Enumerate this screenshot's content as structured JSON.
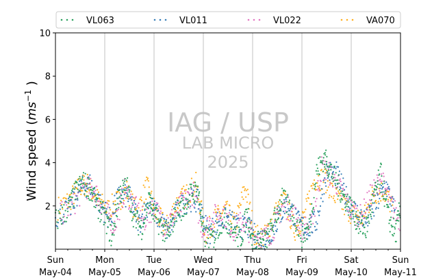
{
  "chart_data": {
    "type": "scatter",
    "title": "",
    "xlabel": "",
    "ylabel": "Wind speed (ms⁻¹)",
    "ylabel_parts": {
      "main": "Wind speed (",
      "unit": "ms",
      "exp": "−1",
      "close": " )"
    },
    "xlim": [
      "2025-05-04T00:00",
      "2025-05-11T00:00"
    ],
    "ylim": [
      0,
      10
    ],
    "yticks": [
      "2",
      "4",
      "6",
      "8",
      "10"
    ],
    "xticks": [
      {
        "day": "Sun",
        "date": "May-04",
        "t": 0
      },
      {
        "day": "Mon",
        "date": "May-05",
        "t": 1
      },
      {
        "day": "Tue",
        "date": "May-06",
        "t": 2
      },
      {
        "day": "Wed",
        "date": "May-07",
        "t": 3
      },
      {
        "day": "Thu",
        "date": "May-08",
        "t": 4
      },
      {
        "day": "Fri",
        "date": "May-09",
        "t": 5
      },
      {
        "day": "Sat",
        "date": "May-10",
        "t": 6
      },
      {
        "day": "Sun",
        "date": "May-11",
        "t": 7
      }
    ],
    "grid": "vertical at day boundaries",
    "legend_position": "top",
    "watermark": [
      "IAG / USP",
      "LAB MICRO",
      "2025"
    ],
    "series": [
      {
        "name": "VL063",
        "color": "#2ca25f",
        "x_days": [
          0,
          0.25,
          0.4,
          0.55,
          0.7,
          0.85,
          1,
          1.15,
          1.3,
          1.45,
          1.6,
          1.75,
          1.9,
          2,
          2.15,
          2.3,
          2.45,
          2.6,
          2.75,
          2.9,
          3,
          3.2,
          3.4,
          3.6,
          3.75,
          3.9,
          4,
          4.15,
          4.3,
          4.45,
          4.6,
          4.8,
          5,
          5.15,
          5.3,
          5.45,
          5.55,
          5.7,
          5.85,
          6,
          6.15,
          6.3,
          6.45,
          6.6,
          6.75,
          6.9,
          7
        ],
        "values": [
          1.3,
          1.8,
          2.6,
          3.1,
          2.8,
          2.0,
          1.5,
          0.5,
          2.6,
          2.9,
          1.4,
          1.0,
          2.3,
          1.6,
          1.0,
          0.6,
          1.8,
          1.9,
          2.6,
          2.7,
          0.6,
          0.5,
          1.4,
          1.0,
          0.4,
          1.7,
          0.3,
          0.3,
          0.5,
          1.4,
          2.3,
          1.8,
          0.6,
          1.0,
          3.6,
          4.2,
          3.8,
          3.1,
          2.4,
          1.9,
          1.2,
          0.9,
          2.3,
          3.5,
          1.5,
          0.7,
          2.0
        ]
      },
      {
        "name": "VL011",
        "color": "#377eb8",
        "x_days": [
          0,
          0.3,
          0.5,
          0.7,
          0.9,
          1.1,
          1.3,
          1.5,
          1.7,
          1.9,
          2.1,
          2.3,
          2.5,
          2.7,
          2.9,
          3.1,
          3.3,
          3.5,
          3.7,
          3.9,
          4.1,
          4.3,
          4.5,
          4.7,
          4.9,
          5.1,
          5.3,
          5.5,
          5.7,
          5.9,
          6.1,
          6.3,
          6.5,
          6.7,
          6.9
        ],
        "values": [
          1.5,
          1.9,
          2.8,
          3.0,
          2.1,
          1.4,
          2.5,
          2.4,
          1.2,
          2.2,
          1.4,
          0.8,
          1.9,
          2.3,
          2.2,
          0.7,
          1.3,
          1.4,
          1.0,
          1.0,
          0.5,
          0.5,
          1.3,
          2.2,
          1.3,
          0.9,
          1.3,
          3.6,
          3.5,
          2.4,
          1.7,
          1.3,
          2.0,
          3.0,
          1.6
        ]
      },
      {
        "name": "VL022",
        "color": "#e377c2",
        "x_days": [
          0.1,
          0.35,
          0.6,
          0.8,
          1.0,
          1.2,
          1.4,
          1.6,
          1.8,
          2.0,
          2.2,
          2.4,
          2.6,
          2.8,
          3.0,
          3.2,
          3.4,
          3.6,
          3.8,
          4.0,
          4.2,
          4.4,
          4.6,
          4.8,
          5.0,
          5.2,
          5.4,
          5.6,
          5.8,
          6.0,
          6.2,
          6.4,
          6.6,
          6.8,
          7.0
        ],
        "values": [
          1.6,
          2.0,
          2.9,
          2.7,
          1.8,
          1.1,
          2.7,
          2.0,
          1.3,
          2.0,
          1.1,
          1.5,
          2.2,
          2.6,
          0.8,
          1.5,
          1.7,
          0.9,
          1.3,
          0.6,
          0.5,
          0.8,
          2.0,
          1.8,
          1.0,
          1.1,
          3.8,
          3.4,
          2.7,
          1.8,
          1.5,
          2.5,
          3.3,
          2.1,
          1.3
        ]
      },
      {
        "name": "VA070",
        "color": "#ffb020",
        "x_days": [
          0.05,
          0.3,
          0.5,
          0.65,
          0.85,
          1.05,
          1.25,
          1.45,
          1.65,
          1.85,
          2.05,
          2.25,
          2.45,
          2.65,
          2.85,
          3.05,
          3.25,
          3.45,
          3.65,
          3.85,
          4.05,
          4.25,
          4.45,
          4.65,
          4.85,
          5.05,
          5.25,
          5.45,
          5.65,
          5.85,
          6.05,
          6.25,
          6.45,
          6.65,
          6.85
        ],
        "values": [
          1.9,
          2.3,
          2.9,
          3.0,
          2.3,
          1.8,
          2.2,
          2.7,
          1.6,
          2.9,
          1.6,
          1.0,
          2.1,
          2.5,
          3.0,
          0.7,
          1.4,
          1.8,
          1.1,
          2.9,
          0.6,
          0.6,
          1.6,
          2.3,
          0.9,
          1.5,
          3.2,
          3.3,
          2.5,
          2.0,
          1.6,
          1.4,
          2.6,
          2.7,
          1.9
        ]
      }
    ]
  }
}
